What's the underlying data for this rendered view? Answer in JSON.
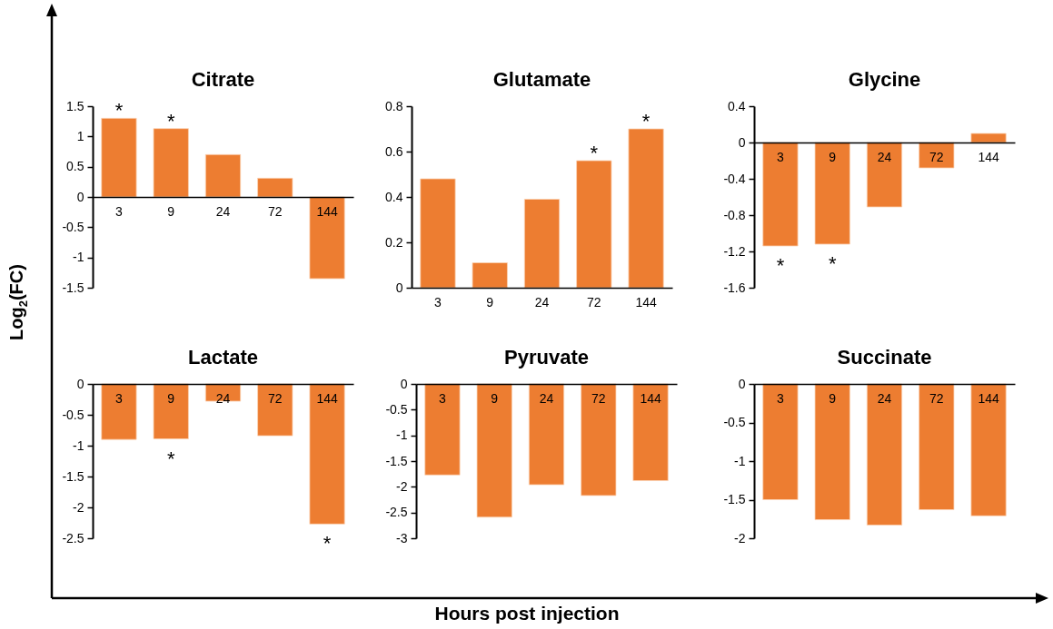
{
  "chart_data": [
    {
      "type": "bar",
      "title": "Citrate",
      "ylabel": "Log$_{2}$(FC)",
      "categories": [
        "3",
        "9",
        "24",
        "72",
        "144"
      ],
      "values": [
        1.3,
        1.13,
        0.7,
        0.31,
        -1.35
      ],
      "color": "#ed7d31",
      "ylim": [
        -1.5,
        1.5
      ],
      "yticks": [
        -1.5,
        -1,
        -0.5,
        0,
        0.5,
        1,
        1.5
      ],
      "grid": false,
      "annotations": [
        {
          "text": "*",
          "x": "3",
          "y": 1.3
        },
        {
          "text": "*",
          "x": "9",
          "y": 1.13
        }
      ]
    },
    {
      "type": "bar",
      "title": "Glutamate",
      "categories": [
        "3",
        "9",
        "24",
        "72",
        "144"
      ],
      "values": [
        0.48,
        0.11,
        0.39,
        0.56,
        0.7
      ],
      "color": "#ed7d31",
      "ylim": [
        0,
        0.8
      ],
      "yticks": [
        0,
        0.2,
        0.4,
        0.6,
        0.8
      ],
      "grid": false,
      "annotations": [
        {
          "text": "*",
          "x": "72",
          "y": 0.56
        },
        {
          "text": "*",
          "x": "144",
          "y": 0.7
        }
      ]
    },
    {
      "type": "bar",
      "title": "Glycine",
      "categories": [
        "3",
        "9",
        "24",
        "72",
        "144"
      ],
      "values": [
        -1.14,
        -1.12,
        -0.71,
        -0.28,
        0.1
      ],
      "color": "#ed7d31",
      "ylim": [
        -1.6,
        0.4
      ],
      "yticks": [
        -1.6,
        -1.2,
        -0.8,
        -0.4,
        0,
        0.4
      ],
      "grid": false,
      "annotations": [
        {
          "text": "*",
          "x": "3",
          "y": -1.14
        },
        {
          "text": "*",
          "x": "9",
          "y": -1.12
        }
      ]
    },
    {
      "type": "bar",
      "title": "Lactate",
      "categories": [
        "3",
        "9",
        "24",
        "72",
        "144"
      ],
      "values": [
        -0.9,
        -0.89,
        -0.28,
        -0.84,
        -2.27
      ],
      "color": "#ed7d31",
      "ylim": [
        -2.5,
        0
      ],
      "yticks": [
        -2.5,
        -2,
        -1.5,
        -1,
        -0.5,
        0
      ],
      "grid": false,
      "annotations": [
        {
          "text": "*",
          "x": "9",
          "y": -0.89
        },
        {
          "text": "*",
          "x": "144",
          "y": -2.27
        }
      ]
    },
    {
      "type": "bar",
      "title": "Pyruvate",
      "xlabel": "Hours post injection",
      "categories": [
        "3",
        "9",
        "24",
        "72",
        "144"
      ],
      "values": [
        -1.77,
        -2.59,
        -1.96,
        -2.17,
        -1.88
      ],
      "color": "#ed7d31",
      "ylim": [
        -3,
        0
      ],
      "yticks": [
        -3,
        -2.5,
        -2,
        -1.5,
        -1,
        -0.5,
        0
      ],
      "grid": false
    },
    {
      "type": "bar",
      "title": "Succinate",
      "categories": [
        "3",
        "9",
        "24",
        "72",
        "144"
      ],
      "values": [
        -1.5,
        -1.76,
        -1.83,
        -1.63,
        -1.71
      ],
      "color": "#ed7d31",
      "ylim": [
        -2,
        0
      ],
      "yticks": [
        -2,
        -1.5,
        -1,
        -0.5,
        0
      ],
      "grid": false
    }
  ]
}
